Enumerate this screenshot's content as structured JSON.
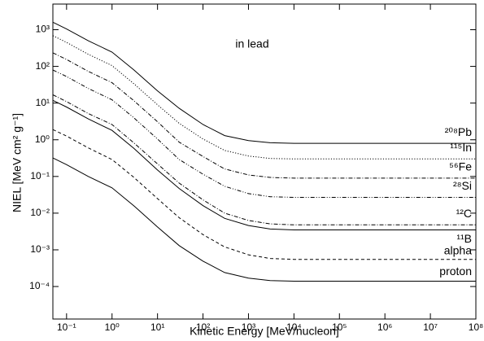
{
  "chart_data": {
    "type": "line",
    "annotation": "in lead",
    "x_label": "Kinetic Energy     [MeV/nucleon]",
    "y_label": "NIEL  [MeV cm² g⁻¹]",
    "x_scale": "log",
    "y_scale": "log",
    "xlim": [
      0.05,
      100000000
    ],
    "ylim": [
      1.3e-05,
      5000
    ],
    "xticks": [
      {
        "value": 0.1,
        "label": "10⁻¹"
      },
      {
        "value": 1,
        "label": "10⁰"
      },
      {
        "value": 10,
        "label": "10¹"
      },
      {
        "value": 100,
        "label": "10²"
      },
      {
        "value": 1000,
        "label": "10³"
      },
      {
        "value": 10000,
        "label": "10⁴"
      },
      {
        "value": 100000,
        "label": "10⁵"
      },
      {
        "value": 1000000,
        "label": "10⁶"
      },
      {
        "value": 10000000,
        "label": "10⁷"
      },
      {
        "value": 100000000,
        "label": "10⁸"
      }
    ],
    "yticks": [
      {
        "value": 0.0001,
        "label": "10⁻⁴"
      },
      {
        "value": 0.001,
        "label": "10⁻³"
      },
      {
        "value": 0.01,
        "label": "10⁻²"
      },
      {
        "value": 0.1,
        "label": "10⁻¹"
      },
      {
        "value": 1,
        "label": "10⁰"
      },
      {
        "value": 10,
        "label": "10¹"
      },
      {
        "value": 100,
        "label": "10²"
      },
      {
        "value": 1000,
        "label": "10³"
      }
    ],
    "x": [
      0.05,
      0.1,
      0.3,
      1,
      3,
      10,
      30,
      100,
      300,
      1000,
      3000,
      10000,
      100000,
      1000000,
      10000000,
      100000000
    ],
    "series": [
      {
        "name": "²⁰⁸Pb",
        "color": "#000000",
        "dash": "solid",
        "values": [
          1600,
          1050,
          500,
          245,
          81,
          21.6,
          7.2,
          2.6,
          1.3,
          0.95,
          0.83,
          0.8,
          0.8,
          0.8,
          0.8,
          0.8
        ]
      },
      {
        "name": "¹¹⁵In",
        "color": "#000000",
        "dash": "dotted",
        "values": [
          690,
          450,
          214,
          105,
          34,
          9,
          2.8,
          1.05,
          0.51,
          0.36,
          0.31,
          0.3,
          0.3,
          0.3,
          0.3,
          0.3
        ]
      },
      {
        "name": "⁵⁶Fe",
        "color": "#000000",
        "dash": "dashdot",
        "values": [
          234,
          154,
          73,
          36,
          11.7,
          3.1,
          0.86,
          0.35,
          0.16,
          0.11,
          0.094,
          0.09,
          0.09,
          0.09,
          0.09,
          0.09
        ]
      },
      {
        "name": "²⁸Si",
        "color": "#000000",
        "dash": "dashdotdot",
        "values": [
          80,
          53,
          25,
          12.3,
          4,
          1.05,
          0.29,
          0.115,
          0.054,
          0.034,
          0.028,
          0.027,
          0.027,
          0.027,
          0.027,
          0.027
        ]
      },
      {
        "name": "¹²C",
        "color": "#000000",
        "dash": "dashdot",
        "values": [
          16.8,
          11,
          5.2,
          2.6,
          0.83,
          0.22,
          0.066,
          0.023,
          0.01,
          0.0063,
          0.0051,
          0.0048,
          0.0048,
          0.0048,
          0.0048,
          0.0048
        ]
      },
      {
        "name": "¹¹B",
        "color": "#000000",
        "dash": "solid",
        "values": [
          11.9,
          7.8,
          3.7,
          1.8,
          0.59,
          0.15,
          0.047,
          0.016,
          0.0072,
          0.0046,
          0.0037,
          0.0035,
          0.0035,
          0.0035,
          0.0035,
          0.0035
        ]
      },
      {
        "name": "alpha",
        "color": "#000000",
        "dash": "dashed",
        "values": [
          1.9,
          1.26,
          0.6,
          0.29,
          0.095,
          0.025,
          0.0075,
          0.0026,
          0.0012,
          0.00073,
          0.00058,
          0.00055,
          0.00055,
          0.00055,
          0.00055,
          0.00055
        ]
      },
      {
        "name": "proton",
        "color": "#000000",
        "dash": "solid",
        "values": [
          0.32,
          0.21,
          0.1,
          0.049,
          0.016,
          0.0042,
          0.0013,
          0.00049,
          0.00024,
          0.00017,
          0.000145,
          0.00014,
          0.00014,
          0.00014,
          0.00014,
          0.00014
        ]
      }
    ]
  }
}
